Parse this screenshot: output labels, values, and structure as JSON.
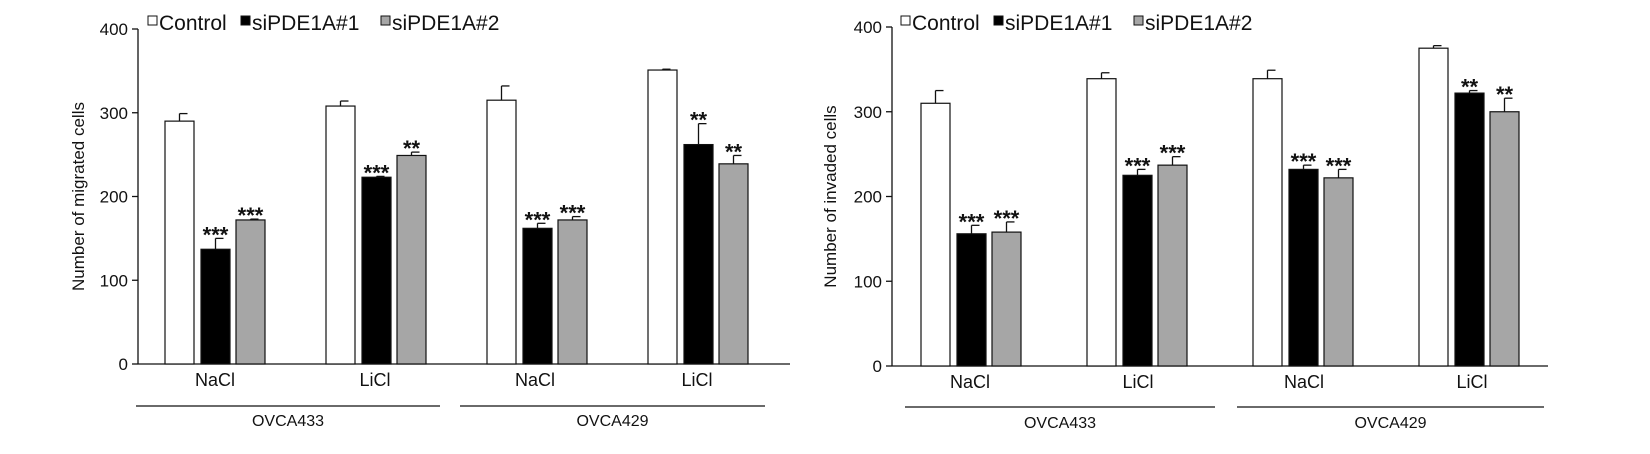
{
  "chart_data": [
    {
      "type": "bar",
      "ylabel": "Number of migrated cells",
      "ylim": [
        0,
        400
      ],
      "yticks": [
        "0",
        "100",
        "200",
        "300",
        "400"
      ],
      "legend": [
        "Control",
        "siPDE1A#1",
        "siPDE1A#2"
      ],
      "categories": [
        "NaCl",
        "LiCl",
        "NaCl",
        "LiCl"
      ],
      "groups": [
        "OVCA433",
        "OVCA429"
      ],
      "series": [
        {
          "name": "Control",
          "color": "#ffffff",
          "values": [
            290,
            308,
            315,
            351
          ],
          "errors": [
            9,
            6,
            17,
            1
          ]
        },
        {
          "name": "siPDE1A#1",
          "color": "#000000",
          "values": [
            137,
            223,
            162,
            262
          ],
          "errors": [
            13,
            1,
            6,
            25
          ]
        },
        {
          "name": "siPDE1A#2",
          "color": "#a6a6a6",
          "values": [
            172,
            249,
            172,
            239
          ],
          "errors": [
            1,
            4,
            4,
            10
          ]
        }
      ],
      "annotations": [
        [
          "",
          "***",
          "***"
        ],
        [
          "",
          "***",
          "**"
        ],
        [
          "",
          "***",
          "***"
        ],
        [
          "",
          "**",
          "**"
        ]
      ]
    },
    {
      "type": "bar",
      "ylabel": "Number of invaded cells",
      "ylim": [
        0,
        400
      ],
      "yticks": [
        "0",
        "100",
        "200",
        "300",
        "400"
      ],
      "legend": [
        "Control",
        "siPDE1A#1",
        "siPDE1A#2"
      ],
      "categories": [
        "NaCl",
        "LiCl",
        "NaCl",
        "LiCl"
      ],
      "groups": [
        "OVCA433",
        "OVCA429"
      ],
      "series": [
        {
          "name": "Control",
          "color": "#ffffff",
          "values": [
            310,
            339,
            339,
            375
          ],
          "errors": [
            15,
            7,
            10,
            3
          ]
        },
        {
          "name": "siPDE1A#1",
          "color": "#000000",
          "values": [
            156,
            225,
            232,
            322
          ],
          "errors": [
            10,
            7,
            5,
            3
          ]
        },
        {
          "name": "siPDE1A#2",
          "color": "#a6a6a6",
          "values": [
            158,
            237,
            222,
            300
          ],
          "errors": [
            12,
            10,
            10,
            16
          ]
        }
      ],
      "annotations": [
        [
          "",
          "***",
          "***"
        ],
        [
          "",
          "***",
          "***"
        ],
        [
          "",
          "***",
          "***"
        ],
        [
          "",
          "**",
          "**"
        ]
      ]
    }
  ]
}
